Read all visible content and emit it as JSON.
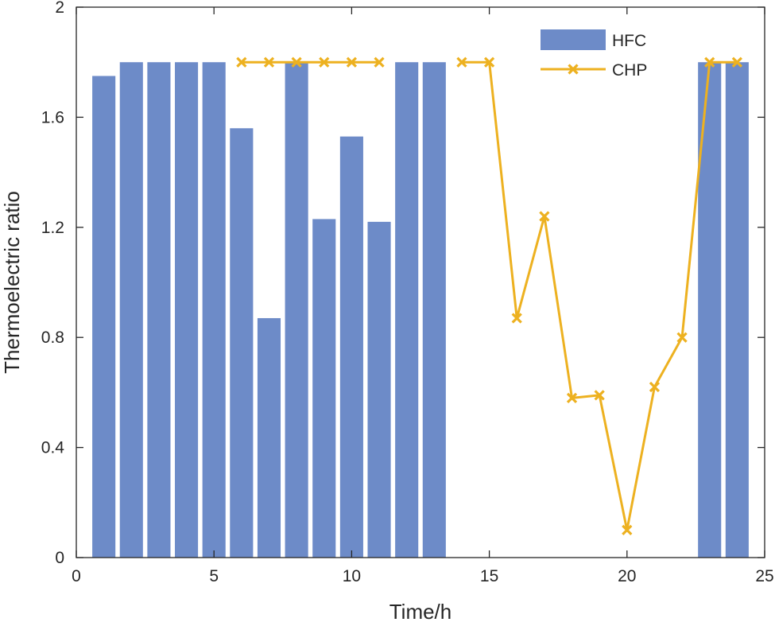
{
  "chart_data": {
    "type": "bar+line",
    "xlabel": "Time/h",
    "ylabel": "Thermoelectric ratio",
    "xlim": [
      0,
      25
    ],
    "ylim": [
      0,
      2
    ],
    "xticks": [
      0,
      5,
      10,
      15,
      20,
      25
    ],
    "yticks": [
      0,
      0.4,
      0.8,
      1.2,
      1.6,
      2
    ],
    "xtick_labels": [
      "0",
      "5",
      "10",
      "15",
      "20",
      "25"
    ],
    "ytick_labels": [
      "0",
      "0.4",
      "0.8",
      "1.2",
      "1.6",
      "2"
    ],
    "legend": {
      "position": "top-right",
      "entries": [
        "HFC",
        "CHP"
      ]
    },
    "series": [
      {
        "name": "HFC",
        "type": "bar",
        "color": "#6d8bc8",
        "x": [
          1,
          2,
          3,
          4,
          5,
          6,
          7,
          8,
          9,
          10,
          11,
          12,
          13,
          23,
          24
        ],
        "values": [
          1.75,
          1.8,
          1.8,
          1.8,
          1.8,
          1.56,
          0.87,
          1.8,
          1.23,
          1.53,
          1.22,
          1.8,
          1.8,
          1.8,
          1.8
        ]
      },
      {
        "name": "CHP",
        "type": "line",
        "marker": "x",
        "color": "#edb120",
        "segments": [
          {
            "x": [
              6,
              7,
              8,
              9,
              10,
              11
            ],
            "values": [
              1.8,
              1.8,
              1.8,
              1.8,
              1.8,
              1.8
            ]
          },
          {
            "x": [
              14,
              15,
              16,
              17,
              18,
              19,
              20,
              21,
              22,
              23,
              24
            ],
            "values": [
              1.8,
              1.8,
              0.87,
              1.24,
              0.58,
              0.59,
              0.1,
              0.62,
              0.8,
              1.8,
              1.8
            ]
          }
        ]
      }
    ]
  }
}
